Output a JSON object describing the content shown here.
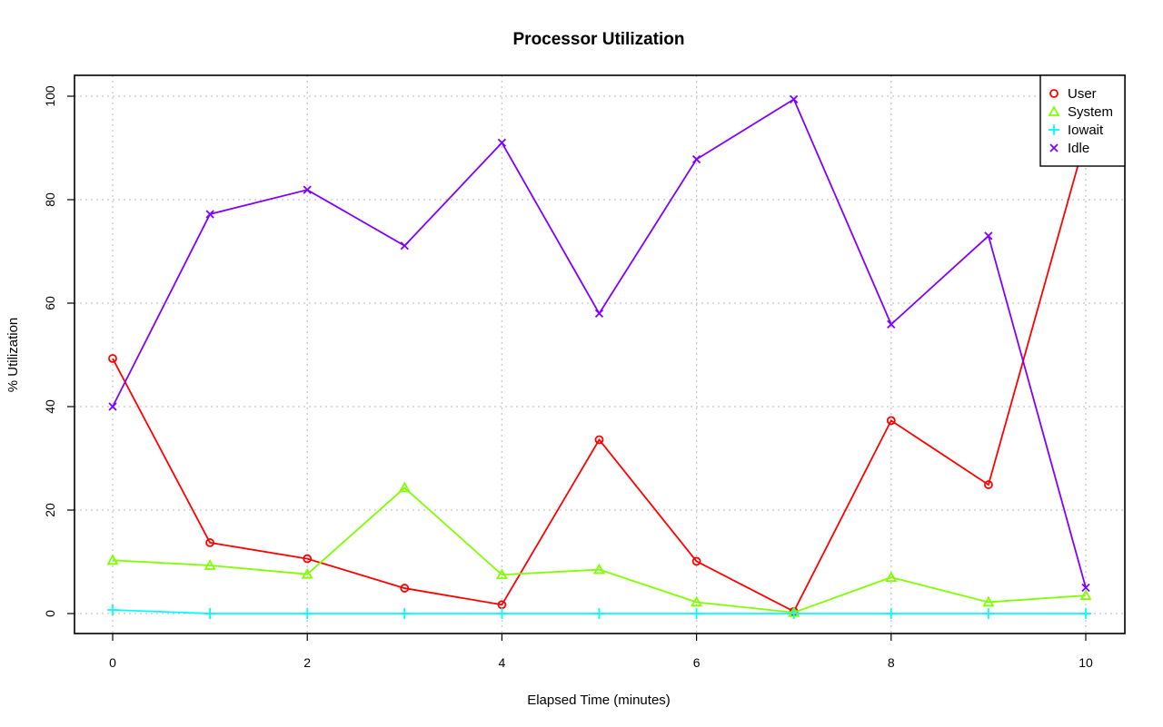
{
  "chart_data": {
    "type": "line",
    "title": "Processor Utilization",
    "xlabel": "Elapsed Time (minutes)",
    "ylabel": "% Utilization",
    "xlim": [
      0,
      10
    ],
    "ylim": [
      0,
      100
    ],
    "x_ticks": [
      0,
      2,
      4,
      6,
      8,
      10
    ],
    "y_ticks": [
      0,
      20,
      40,
      60,
      80,
      100
    ],
    "grid": true,
    "legend_position": "top-right",
    "x": [
      0,
      1,
      2,
      3,
      4,
      5,
      6,
      7,
      8,
      9,
      10
    ],
    "series": [
      {
        "name": "User",
        "color": "#ff0000",
        "marker": "circle",
        "values": [
          49.3,
          13.7,
          10.6,
          4.9,
          1.7,
          33.6,
          10.1,
          0.4,
          37.3,
          24.9,
          92.0
        ]
      },
      {
        "name": "System",
        "color": "#80ff00",
        "marker": "triangle",
        "values": [
          10.3,
          9.3,
          7.6,
          24.3,
          7.5,
          8.5,
          2.2,
          0.2,
          7.0,
          2.2,
          3.5
        ]
      },
      {
        "name": "Iowait",
        "color": "#00ffff",
        "marker": "plus",
        "values": [
          0.7,
          0.0,
          0.0,
          0.0,
          0.0,
          0.0,
          0.0,
          0.0,
          0.0,
          0.0,
          0.0
        ]
      },
      {
        "name": "Idle",
        "color": "#8000ff",
        "marker": "cross",
        "values": [
          40.0,
          77.2,
          81.9,
          71.1,
          91.0,
          58.0,
          87.8,
          99.4,
          55.9,
          73.0,
          5.0
        ]
      }
    ]
  }
}
